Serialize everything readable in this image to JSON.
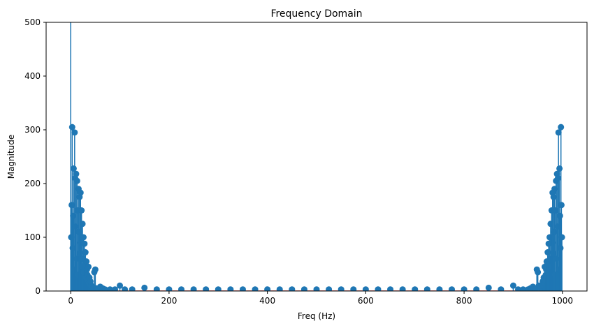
{
  "chart_data": {
    "type": "stem",
    "title": "Frequency Domain",
    "xlabel": "Freq (Hz)",
    "ylabel": "Magnitude",
    "xlim": [
      -50,
      1050
    ],
    "ylim": [
      0,
      500
    ],
    "xticks": [
      0,
      200,
      400,
      600,
      800,
      1000
    ],
    "yticks": [
      0,
      100,
      200,
      300,
      400,
      500
    ],
    "grid": false,
    "colors": {
      "stem": "#1f77b4",
      "baseline": "#d62728"
    },
    "series": [
      {
        "points": [
          [
            0,
            520
          ],
          [
            1,
            100
          ],
          [
            2,
            160
          ],
          [
            3,
            305
          ],
          [
            4,
            80
          ],
          [
            5,
            140
          ],
          [
            6,
            228
          ],
          [
            7,
            40
          ],
          [
            8,
            295
          ],
          [
            9,
            210
          ],
          [
            10,
            120
          ],
          [
            11,
            218
          ],
          [
            12,
            60
          ],
          [
            13,
            205
          ],
          [
            14,
            150
          ],
          [
            15,
            30
          ],
          [
            16,
            190
          ],
          [
            17,
            110
          ],
          [
            18,
            175
          ],
          [
            19,
            70
          ],
          [
            20,
            183
          ],
          [
            21,
            90
          ],
          [
            22,
            150
          ],
          [
            23,
            45
          ],
          [
            24,
            125
          ],
          [
            25,
            60
          ],
          [
            26,
            100
          ],
          [
            27,
            35
          ],
          [
            28,
            88
          ],
          [
            29,
            50
          ],
          [
            30,
            72
          ],
          [
            31,
            25
          ],
          [
            32,
            55
          ],
          [
            33,
            40
          ],
          [
            34,
            30
          ],
          [
            35,
            20
          ],
          [
            36,
            45
          ],
          [
            37,
            15
          ],
          [
            38,
            25
          ],
          [
            39,
            12
          ],
          [
            40,
            18
          ],
          [
            42,
            10
          ],
          [
            44,
            8
          ],
          [
            46,
            6
          ],
          [
            48,
            35
          ],
          [
            50,
            40
          ],
          [
            52,
            5
          ],
          [
            55,
            4
          ],
          [
            60,
            8
          ],
          [
            65,
            5
          ],
          [
            70,
            3
          ],
          [
            80,
            3
          ],
          [
            90,
            3
          ],
          [
            100,
            10
          ],
          [
            110,
            3
          ],
          [
            125,
            3
          ],
          [
            150,
            6
          ],
          [
            175,
            3
          ],
          [
            200,
            3
          ],
          [
            225,
            3
          ],
          [
            250,
            3
          ],
          [
            275,
            3
          ],
          [
            300,
            3
          ],
          [
            325,
            3
          ],
          [
            350,
            3
          ],
          [
            375,
            3
          ],
          [
            400,
            3
          ],
          [
            425,
            3
          ],
          [
            450,
            3
          ],
          [
            475,
            3
          ],
          [
            500,
            3
          ],
          [
            525,
            3
          ],
          [
            550,
            3
          ],
          [
            575,
            3
          ],
          [
            600,
            3
          ],
          [
            625,
            3
          ],
          [
            650,
            3
          ],
          [
            675,
            3
          ],
          [
            700,
            3
          ],
          [
            725,
            3
          ],
          [
            750,
            3
          ],
          [
            775,
            3
          ],
          [
            800,
            3
          ],
          [
            825,
            3
          ],
          [
            850,
            6
          ],
          [
            875,
            3
          ],
          [
            900,
            10
          ],
          [
            910,
            3
          ],
          [
            920,
            3
          ],
          [
            930,
            3
          ],
          [
            935,
            5
          ],
          [
            940,
            8
          ],
          [
            945,
            4
          ],
          [
            948,
            40
          ],
          [
            950,
            35
          ],
          [
            952,
            10
          ],
          [
            954,
            8
          ],
          [
            956,
            6
          ],
          [
            958,
            10
          ],
          [
            960,
            18
          ],
          [
            961,
            12
          ],
          [
            962,
            25
          ],
          [
            963,
            15
          ],
          [
            964,
            45
          ],
          [
            965,
            20
          ],
          [
            966,
            30
          ],
          [
            967,
            40
          ],
          [
            968,
            55
          ],
          [
            969,
            50
          ],
          [
            970,
            72
          ],
          [
            971,
            35
          ],
          [
            972,
            88
          ],
          [
            973,
            50
          ],
          [
            974,
            100
          ],
          [
            975,
            60
          ],
          [
            976,
            125
          ],
          [
            977,
            45
          ],
          [
            978,
            150
          ],
          [
            979,
            90
          ],
          [
            980,
            183
          ],
          [
            981,
            70
          ],
          [
            982,
            175
          ],
          [
            983,
            110
          ],
          [
            984,
            190
          ],
          [
            985,
            30
          ],
          [
            986,
            150
          ],
          [
            987,
            205
          ],
          [
            988,
            60
          ],
          [
            989,
            218
          ],
          [
            990,
            120
          ],
          [
            991,
            210
          ],
          [
            992,
            295
          ],
          [
            993,
            40
          ],
          [
            994,
            228
          ],
          [
            995,
            140
          ],
          [
            996,
            80
          ],
          [
            997,
            305
          ],
          [
            998,
            160
          ],
          [
            999,
            100
          ]
        ]
      }
    ]
  }
}
